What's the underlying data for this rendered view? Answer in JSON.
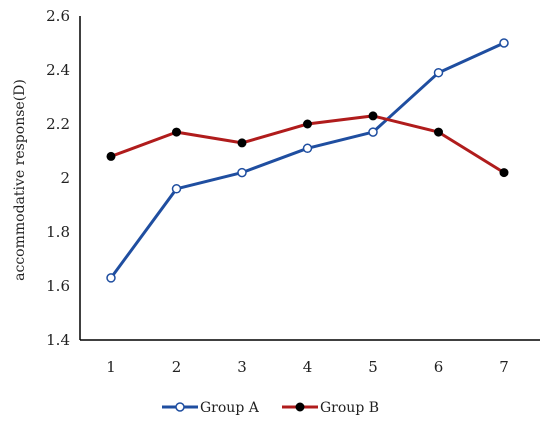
{
  "chart_data": {
    "type": "line",
    "x": [
      1,
      2,
      3,
      4,
      5,
      6,
      7
    ],
    "categories": [
      "1",
      "2",
      "3",
      "4",
      "5",
      "6",
      "7"
    ],
    "ylabel": "accommodative response(D)",
    "ylim": [
      1.4,
      2.6
    ],
    "yticks": [
      "1.4",
      "1.6",
      "1.8",
      "2",
      "2.2",
      "2.4",
      "2.6"
    ],
    "grid": false,
    "legend_position": "bottom",
    "series": [
      {
        "name": "Group A",
        "color": "#1f4ea0",
        "marker": "open-circle",
        "values": [
          1.63,
          1.96,
          2.02,
          2.11,
          2.17,
          2.39,
          2.5
        ]
      },
      {
        "name": "Group B",
        "color": "#b01c1c",
        "marker": "filled-circle",
        "values": [
          2.08,
          2.17,
          2.13,
          2.2,
          2.23,
          2.17,
          2.02
        ]
      }
    ]
  }
}
